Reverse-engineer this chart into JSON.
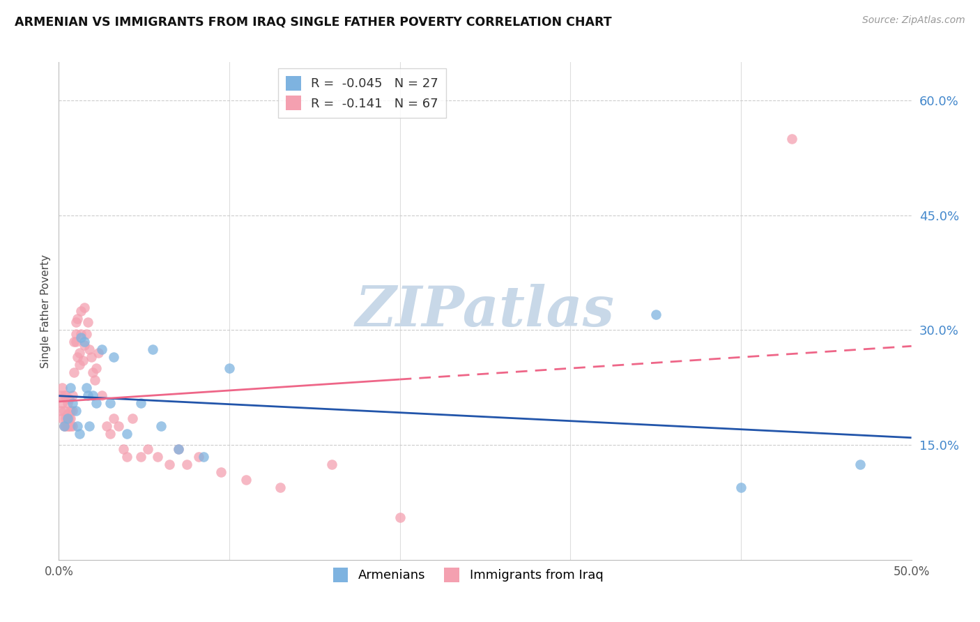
{
  "title": "ARMENIAN VS IMMIGRANTS FROM IRAQ SINGLE FATHER POVERTY CORRELATION CHART",
  "source": "Source: ZipAtlas.com",
  "ylabel": "Single Father Poverty",
  "r_armenian": -0.045,
  "n_armenian": 27,
  "r_iraq": -0.141,
  "n_iraq": 67,
  "xlim": [
    0.0,
    0.5
  ],
  "ylim": [
    0.0,
    0.65
  ],
  "yticks_right": [
    0.15,
    0.3,
    0.45,
    0.6
  ],
  "xticks": [
    0.0,
    0.1,
    0.2,
    0.3,
    0.4,
    0.5
  ],
  "color_armenian": "#7EB3E0",
  "color_iraq": "#F4A0B0",
  "color_armenian_line": "#2255AA",
  "color_iraq_line": "#EE6688",
  "color_right_axis": "#4488CC",
  "watermark_color": "#C8D8E8",
  "armenian_x": [
    0.003,
    0.005,
    0.007,
    0.008,
    0.01,
    0.011,
    0.012,
    0.013,
    0.015,
    0.016,
    0.017,
    0.018,
    0.02,
    0.022,
    0.025,
    0.03,
    0.032,
    0.04,
    0.048,
    0.055,
    0.06,
    0.07,
    0.085,
    0.1,
    0.35,
    0.4,
    0.47
  ],
  "armenian_y": [
    0.175,
    0.185,
    0.225,
    0.205,
    0.195,
    0.175,
    0.165,
    0.29,
    0.285,
    0.225,
    0.215,
    0.175,
    0.215,
    0.205,
    0.275,
    0.205,
    0.265,
    0.165,
    0.205,
    0.275,
    0.175,
    0.145,
    0.135,
    0.25,
    0.32,
    0.095,
    0.125
  ],
  "iraq_x": [
    0.001,
    0.001,
    0.002,
    0.002,
    0.002,
    0.003,
    0.003,
    0.003,
    0.004,
    0.004,
    0.004,
    0.005,
    0.005,
    0.005,
    0.005,
    0.006,
    0.006,
    0.006,
    0.007,
    0.007,
    0.007,
    0.008,
    0.008,
    0.008,
    0.009,
    0.009,
    0.01,
    0.01,
    0.01,
    0.011,
    0.011,
    0.012,
    0.012,
    0.013,
    0.013,
    0.014,
    0.015,
    0.015,
    0.016,
    0.017,
    0.018,
    0.019,
    0.02,
    0.021,
    0.022,
    0.023,
    0.025,
    0.028,
    0.03,
    0.032,
    0.035,
    0.038,
    0.04,
    0.043,
    0.048,
    0.052,
    0.058,
    0.065,
    0.07,
    0.075,
    0.082,
    0.095,
    0.11,
    0.13,
    0.16,
    0.2,
    0.43
  ],
  "iraq_y": [
    0.195,
    0.215,
    0.185,
    0.205,
    0.225,
    0.175,
    0.195,
    0.215,
    0.185,
    0.175,
    0.215,
    0.19,
    0.205,
    0.175,
    0.185,
    0.21,
    0.185,
    0.175,
    0.195,
    0.175,
    0.185,
    0.215,
    0.195,
    0.175,
    0.285,
    0.245,
    0.31,
    0.285,
    0.295,
    0.265,
    0.315,
    0.255,
    0.27,
    0.325,
    0.295,
    0.26,
    0.33,
    0.28,
    0.295,
    0.31,
    0.275,
    0.265,
    0.245,
    0.235,
    0.25,
    0.27,
    0.215,
    0.175,
    0.165,
    0.185,
    0.175,
    0.145,
    0.135,
    0.185,
    0.135,
    0.145,
    0.135,
    0.125,
    0.145,
    0.125,
    0.135,
    0.115,
    0.105,
    0.095,
    0.125,
    0.055,
    0.55
  ],
  "iraq_line_solid_end": 0.2,
  "iraq_line_dashed_end": 0.5
}
